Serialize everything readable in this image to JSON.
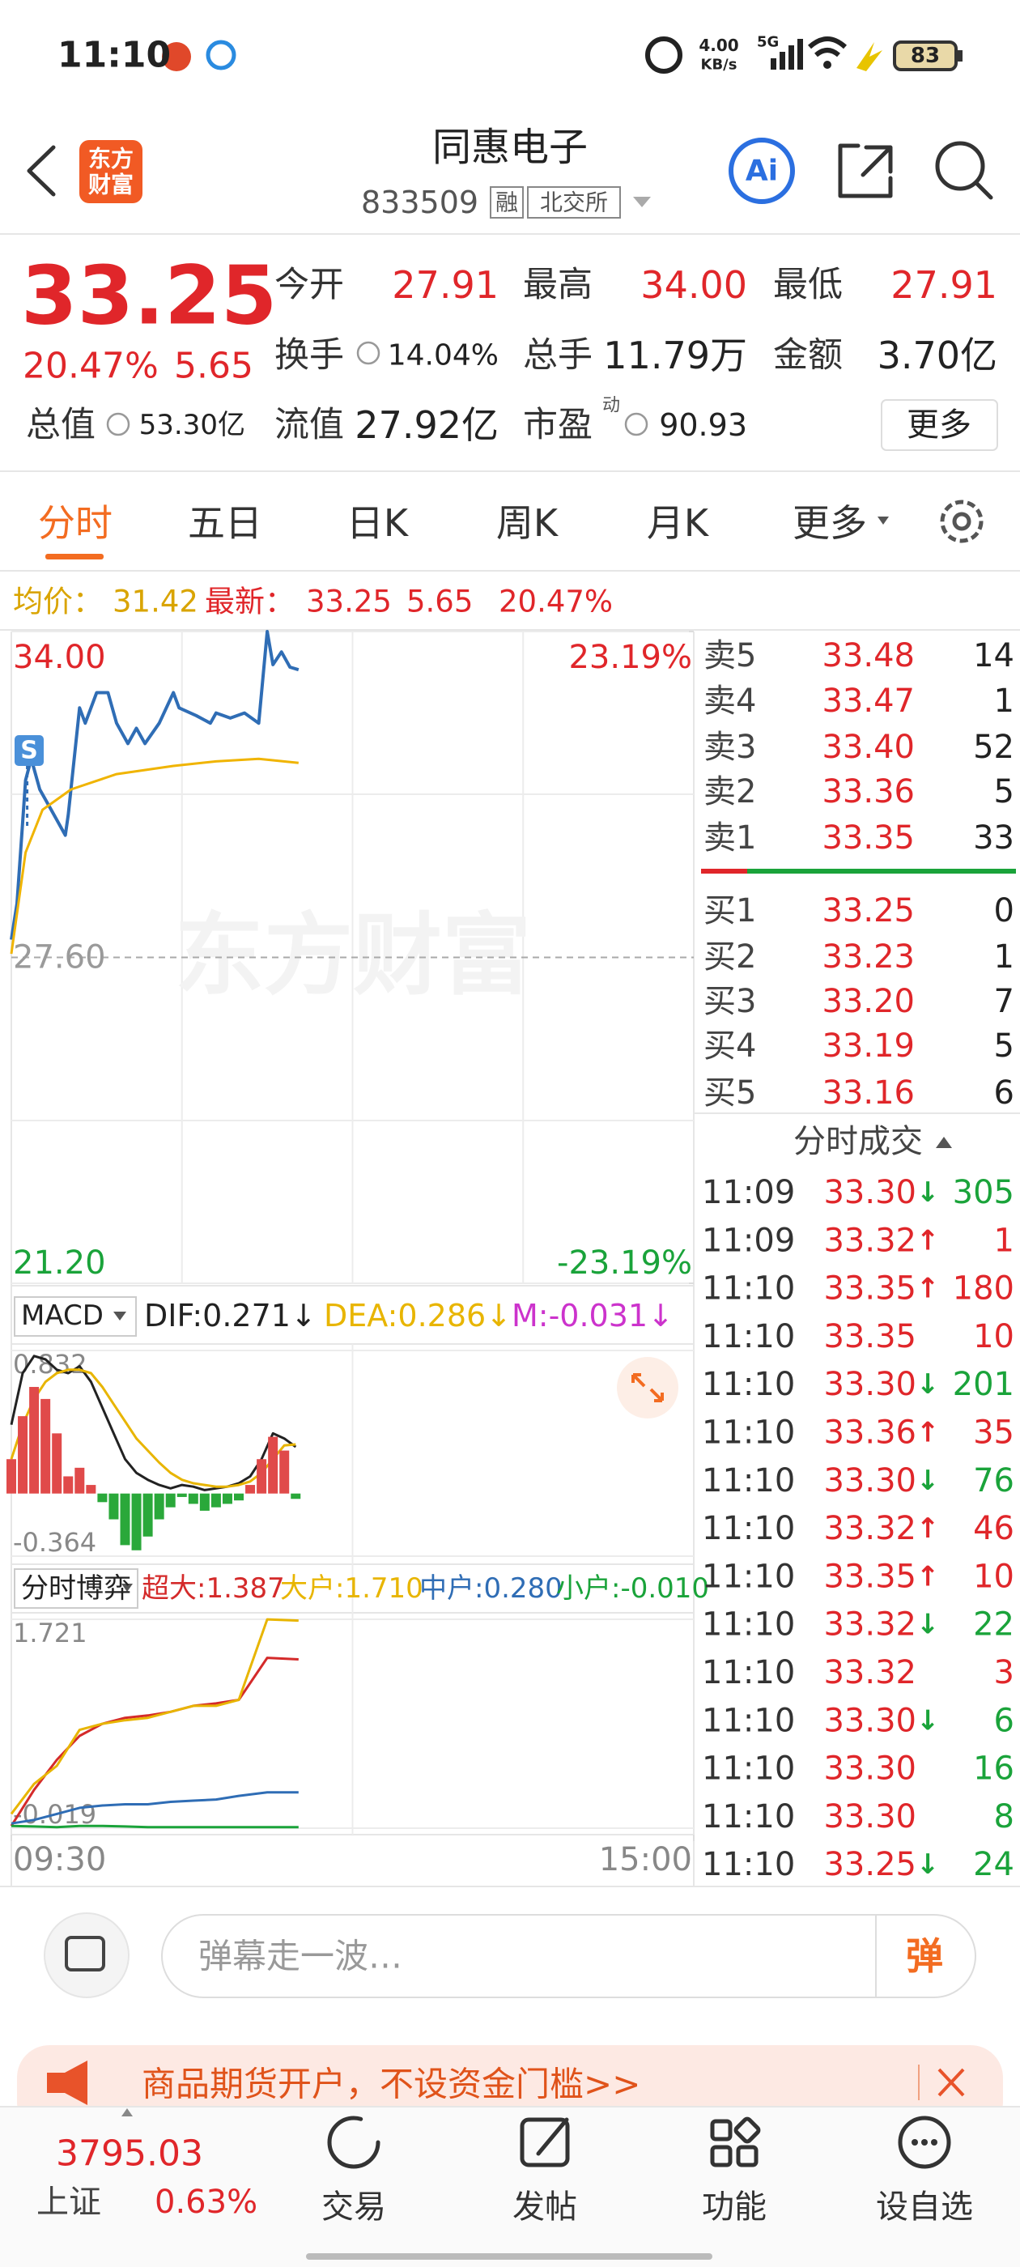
{
  "status_bar": {
    "time": "11:10",
    "net_speed": "4.00",
    "net_unit": "KB/s",
    "signal": "5G",
    "battery": "83"
  },
  "header": {
    "logo": [
      "东方",
      "财富"
    ],
    "title": "同惠电子",
    "code": "833509",
    "badges": [
      "融",
      "北交所"
    ]
  },
  "quote": {
    "price": "33.25",
    "change_pct": "20.47%",
    "change": "5.65",
    "fields": [
      {
        "label": "今开",
        "value": "27.91"
      },
      {
        "label": "最高",
        "value": "34.00"
      },
      {
        "label": "最低",
        "value": "27.91"
      },
      {
        "label": "换手",
        "value": "14.04%"
      },
      {
        "label": "总手",
        "value": "11.79万"
      },
      {
        "label": "金额",
        "value": "3.70亿"
      },
      {
        "label": "总值",
        "value": "53.30亿"
      },
      {
        "label": "流值",
        "value": "27.92亿"
      },
      {
        "label": "市盈",
        "sup": "动",
        "value": "90.93"
      }
    ],
    "more_button": "更多"
  },
  "tabs": [
    "分时",
    "五日",
    "日K",
    "周K",
    "月K",
    "更多"
  ],
  "info_line": {
    "avg_label": "均价：",
    "avg": "31.42",
    "last_label": "最新：",
    "last": "33.25",
    "change": "5.65",
    "change_pct": "20.47%"
  },
  "watermark": "东方财富",
  "chart_data": [
    {
      "type": "line",
      "marker": "S",
      "xlim": [
        0,
        240
      ],
      "xticks": [
        {
          "value": 0,
          "label": "09:30"
        },
        {
          "value": 240,
          "label": "15:00"
        }
      ],
      "ylim": [
        21.2,
        34
      ],
      "yticks": [
        {
          "value": 34,
          "label": "34.00"
        },
        {
          "value": 27.6,
          "label": "27.60"
        },
        {
          "value": 21.2,
          "label": "21.20"
        }
      ],
      "tick_colors": [
        "#e0262a",
        "#9a9a9a",
        "#1aa33a"
      ],
      "y2lim": [
        -23.19,
        23.19
      ],
      "y2ticks": [
        {
          "value": 23.19,
          "label": "23.19%"
        },
        {
          "value": -23.19,
          "label": "-23.19%"
        }
      ],
      "y2_tick_colors": [
        "#e0262a",
        "#1aa33a"
      ],
      "series": [
        {
          "color": "#2f6db5",
          "x": [
            0,
            2,
            5,
            7,
            10,
            14,
            19,
            20,
            24,
            26,
            30,
            34,
            37,
            41,
            44,
            47,
            52,
            57,
            59,
            65,
            70,
            72,
            77,
            82,
            87,
            90,
            92,
            95,
            98,
            101
          ],
          "values": [
            27.95,
            28.66,
            31.08,
            31.5,
            30.9,
            30.5,
            30.0,
            30.4,
            32.5,
            32.2,
            32.8,
            32.8,
            32.2,
            31.8,
            32.1,
            31.8,
            32.2,
            32.8,
            32.5,
            32.35,
            32.2,
            32.4,
            32.3,
            32.4,
            32.2,
            34.0,
            33.35,
            33.6,
            33.3,
            33.25
          ]
        },
        {
          "color": "#f0b400",
          "x": [
            0,
            5,
            11,
            21,
            37,
            57,
            72,
            87,
            101
          ],
          "values": [
            27.67,
            29.66,
            30.5,
            30.9,
            31.2,
            31.36,
            31.45,
            31.5,
            31.42
          ]
        }
      ]
    },
    {
      "type": "combo",
      "indicator": "MACD",
      "xlim": [
        0,
        240
      ],
      "ylim": [
        -0.364,
        0.832
      ],
      "yticks": [
        0.832,
        -0.364
      ],
      "x": [
        0,
        4,
        8,
        12,
        16,
        20,
        24,
        28,
        32,
        36,
        40,
        44,
        48,
        52,
        56,
        60,
        64,
        68,
        72,
        76,
        80,
        84,
        88,
        92,
        96,
        100
      ],
      "series": [
        {
          "name": "DIF:0.271↓",
          "style": "line",
          "color": "#222222",
          "values": [
            0.4,
            0.7,
            0.8,
            0.78,
            0.72,
            0.7,
            0.74,
            0.65,
            0.5,
            0.35,
            0.2,
            0.12,
            0.08,
            0.05,
            0.03,
            0.05,
            0.04,
            0.02,
            0.03,
            0.04,
            0.06,
            0.1,
            0.2,
            0.35,
            0.32,
            0.271
          ]
        },
        {
          "name": "DEA:0.286↓",
          "style": "line",
          "color": "#e8b500",
          "values": [
            0.2,
            0.4,
            0.55,
            0.65,
            0.7,
            0.72,
            0.72,
            0.7,
            0.62,
            0.52,
            0.42,
            0.32,
            0.25,
            0.18,
            0.12,
            0.08,
            0.06,
            0.05,
            0.04,
            0.04,
            0.05,
            0.07,
            0.12,
            0.2,
            0.28,
            0.286
          ]
        },
        {
          "name": "M:-0.031↓",
          "style": "bar",
          "color": "#cc33cc",
          "bar_color": "#e04a4a",
          "negative_color": "#2aa83a",
          "values": [
            0.2,
            0.45,
            0.62,
            0.55,
            0.35,
            0.1,
            0.15,
            0.05,
            -0.05,
            -0.15,
            -0.3,
            -0.33,
            -0.25,
            -0.15,
            -0.08,
            -0.02,
            -0.06,
            -0.1,
            -0.08,
            -0.06,
            -0.04,
            0.05,
            0.2,
            0.33,
            0.25,
            -0.031
          ]
        }
      ]
    },
    {
      "type": "line",
      "indicator": "分时博弈",
      "xlim": [
        0,
        240
      ],
      "ylim": [
        -0.019,
        1.721
      ],
      "yticks": [
        1.721,
        -0.019
      ],
      "x": [
        0,
        8,
        16,
        24,
        32,
        40,
        48,
        56,
        64,
        72,
        80,
        90,
        101
      ],
      "series": [
        {
          "name": "超大:1.387",
          "color": "#d42a2a",
          "values": [
            0,
            0.3,
            0.55,
            0.75,
            0.85,
            0.9,
            0.92,
            0.95,
            1.0,
            1.02,
            1.05,
            1.4,
            1.387
          ]
        },
        {
          "name": "大户:1.710",
          "color": "#e8b500",
          "values": [
            0.1,
            0.35,
            0.5,
            0.8,
            0.85,
            0.88,
            0.9,
            0.95,
            1.0,
            1.0,
            1.05,
            1.72,
            1.71
          ]
        },
        {
          "name": "中户:0.280",
          "color": "#2f6db5",
          "values": [
            0.02,
            0.05,
            0.1,
            0.15,
            0.17,
            0.18,
            0.18,
            0.2,
            0.21,
            0.22,
            0.25,
            0.28,
            0.28
          ]
        },
        {
          "name": "小户:-0.010",
          "color": "#1aa33a",
          "values": [
            0,
            -0.005,
            -0.01,
            0,
            0,
            -0.005,
            -0.01,
            -0.01,
            -0.01,
            -0.01,
            -0.01,
            -0.01,
            -0.01
          ]
        }
      ]
    }
  ],
  "order_book": {
    "asks": [
      {
        "label": "卖5",
        "price": "33.48",
        "volume": "14"
      },
      {
        "label": "卖4",
        "price": "33.47",
        "volume": "1"
      },
      {
        "label": "卖3",
        "price": "33.40",
        "volume": "52"
      },
      {
        "label": "卖2",
        "price": "33.36",
        "volume": "5"
      },
      {
        "label": "卖1",
        "price": "33.35",
        "volume": "33"
      }
    ],
    "bids": [
      {
        "label": "买1",
        "price": "33.25",
        "volume": "0"
      },
      {
        "label": "买2",
        "price": "33.23",
        "volume": "1"
      },
      {
        "label": "买3",
        "price": "33.20",
        "volume": "7"
      },
      {
        "label": "买4",
        "price": "33.19",
        "volume": "5"
      },
      {
        "label": "买5",
        "price": "33.16",
        "volume": "6"
      }
    ]
  },
  "trades": {
    "title": "分时成交",
    "rows": [
      {
        "time": "11:09",
        "price": "33.30",
        "arrow": "↓",
        "volume": "305",
        "color": "#1aa33a"
      },
      {
        "time": "11:09",
        "price": "33.32",
        "arrow": "↑",
        "volume": "1",
        "color": "#e0262a"
      },
      {
        "time": "11:10",
        "price": "33.35",
        "arrow": "↑",
        "volume": "180",
        "color": "#e0262a"
      },
      {
        "time": "11:10",
        "price": "33.35",
        "volume": "10",
        "color": "#e0262a"
      },
      {
        "time": "11:10",
        "price": "33.30",
        "arrow": "↓",
        "volume": "201",
        "color": "#1aa33a"
      },
      {
        "time": "11:10",
        "price": "33.36",
        "arrow": "↑",
        "volume": "35",
        "color": "#e0262a"
      },
      {
        "time": "11:10",
        "price": "33.30",
        "arrow": "↓",
        "volume": "76",
        "color": "#1aa33a"
      },
      {
        "time": "11:10",
        "price": "33.32",
        "arrow": "↑",
        "volume": "46",
        "color": "#e0262a"
      },
      {
        "time": "11:10",
        "price": "33.35",
        "arrow": "↑",
        "volume": "10",
        "color": "#e0262a"
      },
      {
        "time": "11:10",
        "price": "33.32",
        "arrow": "↓",
        "volume": "22",
        "color": "#1aa33a"
      },
      {
        "time": "11:10",
        "price": "33.32",
        "volume": "3",
        "color": "#e0262a"
      },
      {
        "time": "11:10",
        "price": "33.30",
        "arrow": "↓",
        "volume": "6",
        "color": "#1aa33a"
      },
      {
        "time": "11:10",
        "price": "33.30",
        "volume": "16",
        "color": "#1aa33a"
      },
      {
        "time": "11:10",
        "price": "33.30",
        "volume": "8",
        "color": "#1aa33a"
      },
      {
        "time": "11:10",
        "price": "33.25",
        "arrow": "↓",
        "volume": "24",
        "color": "#1aa33a"
      }
    ]
  },
  "comment_bar": {
    "placeholder": "弹幕走一波…",
    "button": "弹"
  },
  "banner": {
    "text": "商品期货开户，不设资金门槛>>"
  },
  "bottom_nav": {
    "index_value": "3795.03",
    "index_name": "上证",
    "index_change": "0.63%",
    "items": [
      "交易",
      "发帖",
      "功能",
      "设自选"
    ]
  }
}
